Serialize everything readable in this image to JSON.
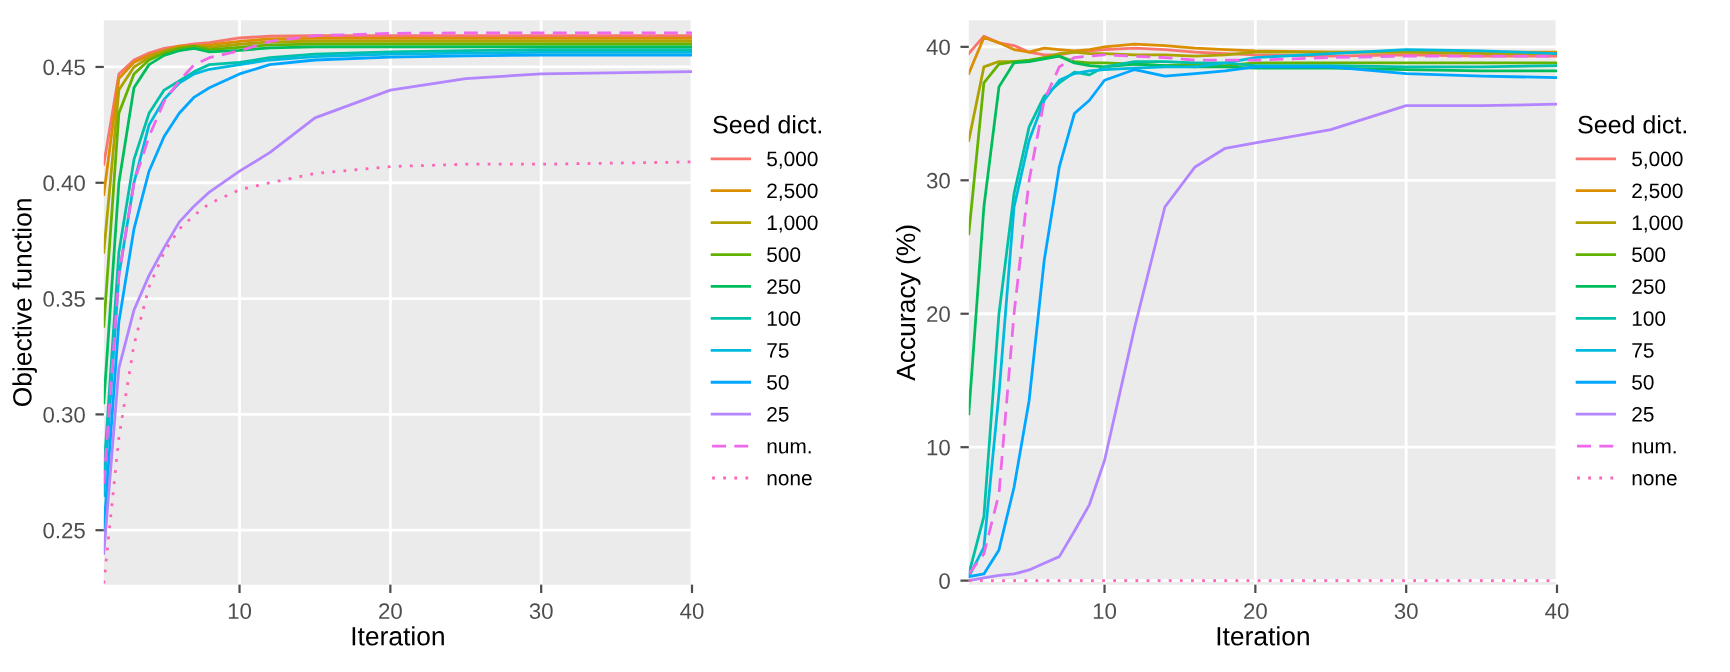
{
  "chart_data": [
    {
      "type": "line",
      "xlabel": "Iteration",
      "ylabel": "Objective function",
      "legend_title": "Seed dict.",
      "legend": "right",
      "grid": true,
      "xlim": [
        1,
        40
      ],
      "ylim": [
        0.2265,
        0.4702
      ],
      "xticks": [
        10,
        20,
        30,
        40
      ],
      "yticks": [
        {
          "value": 0.25,
          "label": "0.25"
        },
        {
          "value": 0.3,
          "label": "0.30"
        },
        {
          "value": 0.35,
          "label": "0.35"
        },
        {
          "value": 0.4,
          "label": "0.40"
        },
        {
          "value": 0.45,
          "label": "0.45"
        }
      ],
      "x": [
        1,
        2,
        3,
        4,
        5,
        6,
        7,
        8,
        10,
        12,
        15,
        20,
        25,
        30,
        40
      ],
      "series": [
        {
          "name": "5,000",
          "color": "#f8766d",
          "line_style": "solid",
          "values": [
            0.408,
            0.447,
            0.453,
            0.456,
            0.458,
            0.459,
            0.46,
            0.4605,
            0.4625,
            0.4633,
            0.4635,
            0.4635,
            0.4635,
            0.4635,
            0.4635
          ]
        },
        {
          "name": "2,500",
          "color": "#db8e00",
          "line_style": "solid",
          "values": [
            0.395,
            0.445,
            0.452,
            0.455,
            0.457,
            0.459,
            0.459,
            0.4595,
            0.461,
            0.4621,
            0.4623,
            0.4623,
            0.4623,
            0.4623,
            0.4623
          ]
        },
        {
          "name": "1,000",
          "color": "#aea200",
          "line_style": "solid",
          "values": [
            0.37,
            0.44,
            0.45,
            0.454,
            0.457,
            0.458,
            0.459,
            0.4585,
            0.4598,
            0.4608,
            0.4611,
            0.4611,
            0.4611,
            0.4611,
            0.4611
          ]
        },
        {
          "name": "500",
          "color": "#64b200",
          "line_style": "solid",
          "values": [
            0.338,
            0.43,
            0.447,
            0.453,
            0.456,
            0.458,
            0.459,
            0.4575,
            0.4585,
            0.4595,
            0.4599,
            0.4599,
            0.4599,
            0.4599,
            0.4599
          ]
        },
        {
          "name": "250",
          "color": "#00bd5c",
          "line_style": "solid",
          "values": [
            0.305,
            0.4,
            0.441,
            0.451,
            0.455,
            0.457,
            0.458,
            0.4565,
            0.4572,
            0.4582,
            0.4587,
            0.4587,
            0.4587,
            0.4587,
            0.4587
          ]
        },
        {
          "name": "100",
          "color": "#00c1a7",
          "line_style": "solid",
          "values": [
            0.275,
            0.37,
            0.41,
            0.43,
            0.44,
            0.444,
            0.448,
            0.451,
            0.452,
            0.454,
            0.4555,
            0.4565,
            0.457,
            0.4575,
            0.4575
          ]
        },
        {
          "name": "75",
          "color": "#00bade",
          "line_style": "solid",
          "values": [
            0.265,
            0.36,
            0.4,
            0.425,
            0.436,
            0.443,
            0.447,
            0.449,
            0.451,
            0.453,
            0.4545,
            0.4555,
            0.456,
            0.4563,
            0.4563
          ]
        },
        {
          "name": "50",
          "color": "#00a6ff",
          "line_style": "solid",
          "values": [
            0.25,
            0.34,
            0.38,
            0.405,
            0.42,
            0.43,
            0.437,
            0.441,
            0.447,
            0.451,
            0.453,
            0.4542,
            0.4548,
            0.4551,
            0.4551
          ]
        },
        {
          "name": "25",
          "color": "#b385ff",
          "line_style": "solid",
          "values": [
            0.24,
            0.32,
            0.345,
            0.36,
            0.372,
            0.383,
            0.39,
            0.396,
            0.405,
            0.413,
            0.428,
            0.44,
            0.445,
            0.447,
            0.448
          ]
        },
        {
          "name": "num.",
          "color": "#ef67eb",
          "line_style": "dashed",
          "values": [
            0.27,
            0.36,
            0.4,
            0.42,
            0.435,
            0.444,
            0.451,
            0.454,
            0.457,
            0.461,
            0.4635,
            0.4645,
            0.4647,
            0.4647,
            0.4647
          ]
        },
        {
          "name": "none",
          "color": "#ff63b6",
          "line_style": "dotted",
          "values": [
            0.227,
            0.29,
            0.33,
            0.355,
            0.37,
            0.38,
            0.386,
            0.391,
            0.397,
            0.4,
            0.404,
            0.407,
            0.408,
            0.408,
            0.409
          ]
        }
      ]
    },
    {
      "type": "line",
      "xlabel": "Iteration",
      "ylabel": "Accuracy (%)",
      "legend_title": "Seed dict.",
      "legend": "right",
      "grid": true,
      "xlim": [
        1,
        40
      ],
      "ylim": [
        -0.3,
        42
      ],
      "xticks": [
        10,
        20,
        30,
        40
      ],
      "yticks": [
        0,
        10,
        20,
        30,
        40
      ],
      "x": [
        1,
        2,
        3,
        4,
        5,
        6,
        7,
        8,
        9,
        10,
        12,
        14,
        16,
        18,
        20,
        25,
        30,
        35,
        40
      ],
      "series": [
        {
          "name": "5,000",
          "color": "#f8766d",
          "line_style": "solid",
          "values": [
            39.5,
            40.8,
            40.3,
            40.1,
            39.6,
            39.4,
            39.4,
            39.6,
            39.7,
            39.8,
            39.9,
            39.8,
            39.6,
            39.5,
            39.4,
            39.3,
            39.4,
            39.3,
            39.3
          ]
        },
        {
          "name": "2,500",
          "color": "#db8e00",
          "line_style": "solid",
          "values": [
            38,
            40.7,
            40.3,
            39.8,
            39.6,
            39.9,
            39.8,
            39.7,
            39.8,
            40,
            40.2,
            40.1,
            39.9,
            39.8,
            39.7,
            39.6,
            39.6,
            39.6,
            39.6
          ]
        },
        {
          "name": "1,000",
          "color": "#aea200",
          "line_style": "solid",
          "values": [
            33,
            38.5,
            38.9,
            38.9,
            38.9,
            39.2,
            39.5,
            39.6,
            39.5,
            39.5,
            39.4,
            39.4,
            39.3,
            39.4,
            39.6,
            39.6,
            39.6,
            39.5,
            39.5
          ]
        },
        {
          "name": "500",
          "color": "#64b200",
          "line_style": "solid",
          "values": [
            26,
            37.3,
            38.7,
            38.9,
            39,
            39.2,
            39.3,
            38.9,
            38.8,
            38.8,
            38.7,
            38.6,
            38.7,
            38.6,
            38.8,
            38.8,
            38.8,
            38.8,
            38.8
          ]
        },
        {
          "name": "250",
          "color": "#00bd5c",
          "line_style": "solid",
          "values": [
            12.5,
            28,
            37,
            38.8,
            38.9,
            39.1,
            39.3,
            38.8,
            38.6,
            38.5,
            38.7,
            38.6,
            38.5,
            38.5,
            38.4,
            38.4,
            38.3,
            38.2,
            38.2
          ]
        },
        {
          "name": "100",
          "color": "#00c1a7",
          "line_style": "solid",
          "values": [
            0.5,
            4.8,
            20,
            29,
            34,
            36.3,
            37.3,
            38.1,
            37.9,
            38.5,
            38.9,
            38.9,
            38.8,
            38.8,
            38.6,
            38.6,
            38.5,
            38.5,
            38.6
          ]
        },
        {
          "name": "75",
          "color": "#00bade",
          "line_style": "solid",
          "values": [
            0.3,
            2.5,
            14,
            28,
            33,
            36,
            37.5,
            38,
            38.2,
            38.3,
            38.4,
            38.5,
            38.5,
            38.8,
            39.2,
            39.5,
            39.8,
            39.7,
            39.5
          ]
        },
        {
          "name": "50",
          "color": "#00a6ff",
          "line_style": "solid",
          "values": [
            0.3,
            0.5,
            2.3,
            7,
            13.5,
            24,
            31,
            35,
            36,
            37.5,
            38.3,
            37.8,
            38,
            38.2,
            38.5,
            38.5,
            38,
            37.8,
            37.7
          ]
        },
        {
          "name": "25",
          "color": "#b385ff",
          "line_style": "solid",
          "values": [
            0,
            0.2,
            0.4,
            0.5,
            0.8,
            1.3,
            1.8,
            3.7,
            5.7,
            9,
            19,
            28,
            31,
            32.4,
            32.8,
            33.8,
            35.6,
            35.6,
            35.7
          ]
        },
        {
          "name": "num.",
          "color": "#ef67eb",
          "line_style": "dashed",
          "values": [
            0.5,
            2,
            6.5,
            20,
            30,
            36,
            38.5,
            39.2,
            39.3,
            39.4,
            39.3,
            39.2,
            39,
            39,
            39,
            39.2,
            39.3,
            39.3,
            39.3
          ]
        },
        {
          "name": "none",
          "color": "#ff63b6",
          "line_style": "dotted",
          "values": [
            0,
            0,
            0,
            0,
            0,
            0,
            0,
            0,
            0,
            0,
            0,
            0,
            0,
            0,
            0,
            0,
            0,
            0,
            0
          ]
        }
      ]
    }
  ]
}
